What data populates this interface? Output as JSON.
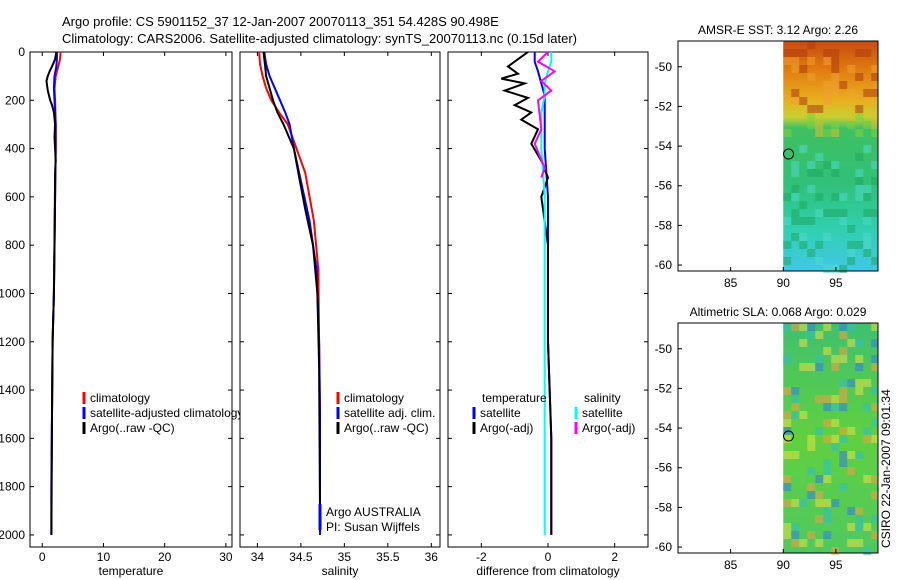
{
  "header": {
    "line1": "Argo profile: CS 5901152_37 12-Jan-2007 20070113_351 54.428S 90.498E",
    "line2": "Climatology: CARS2006. Satellite-adjusted climatology: synTS_20070113.nc (0.15d later)"
  },
  "side_credit": "CSIRO 22-Jan-2007 09:01:34",
  "colors": {
    "red": "#ff0000",
    "blue": "#0000ff",
    "black": "#000000",
    "cyan": "#00ffff",
    "magenta": "#ff00ff"
  },
  "chart_data": [
    {
      "type": "line",
      "xlabel": "temperature",
      "xlim": [
        -2,
        31
      ],
      "ylim": [
        0,
        2050
      ],
      "xticks": [
        0,
        10,
        20,
        30
      ],
      "yticks": [
        0,
        200,
        400,
        600,
        800,
        1000,
        1200,
        1400,
        1600,
        1800,
        2000
      ],
      "y_reversed": true,
      "legend": {
        "position": "middle-right",
        "entries": [
          "climatology",
          "satellite-adjusted climatology",
          "Argo(..raw -QC)"
        ]
      },
      "series": [
        {
          "name": "climatology",
          "color": "red",
          "x": [
            3.0,
            2.9,
            2.6,
            2.2,
            2.0,
            2.1,
            2.2,
            2.2,
            2.1,
            2.0,
            1.9,
            1.7,
            1.6,
            1.5,
            1.5
          ],
          "y": [
            0,
            30,
            60,
            100,
            150,
            200,
            300,
            400,
            600,
            800,
            1000,
            1200,
            1500,
            1800,
            2000
          ]
        },
        {
          "name": "satellite-adjusted climatology",
          "color": "blue",
          "x": [
            2.4,
            2.4,
            2.3,
            2.0,
            1.9,
            2.0,
            2.2,
            2.2,
            2.1,
            2.0,
            1.9,
            1.7,
            1.6,
            1.5,
            1.5
          ],
          "y": [
            0,
            30,
            60,
            100,
            150,
            200,
            300,
            400,
            600,
            800,
            1000,
            1200,
            1500,
            1800,
            2000
          ]
        },
        {
          "name": "Argo(..raw -QC)",
          "color": "black",
          "x": [
            2.3,
            2.1,
            1.6,
            1.2,
            0.9,
            0.7,
            0.8,
            0.9,
            1.1,
            1.3,
            1.6,
            1.9,
            2.1,
            2.0,
            2.1,
            2.2,
            2.1,
            2.0,
            1.9,
            1.7,
            1.6,
            1.5
          ],
          "y": [
            0,
            30,
            60,
            80,
            100,
            120,
            140,
            160,
            180,
            200,
            220,
            250,
            300,
            350,
            400,
            450,
            500,
            800,
            1000,
            1200,
            1500,
            2000
          ]
        }
      ]
    },
    {
      "type": "line",
      "xlabel": "salinity",
      "xlim": [
        33.8,
        36.1
      ],
      "ylim": [
        0,
        2050
      ],
      "xticks": [
        34,
        34.5,
        35,
        35.5,
        36
      ],
      "y_reversed": true,
      "legend": {
        "position": "middle-right",
        "entries": [
          "climatology",
          "satellite adj. clim.",
          "Argo(..raw -QC)"
        ]
      },
      "note": [
        "Argo AUSTRALIA",
        "PI: Susan Wijffels"
      ],
      "series": [
        {
          "name": "climatology",
          "color": "red",
          "x": [
            34.02,
            34.03,
            34.06,
            34.1,
            34.16,
            34.25,
            34.35,
            34.45,
            34.55,
            34.65,
            34.7,
            34.71,
            34.72,
            34.72,
            34.72
          ],
          "y": [
            0,
            50,
            100,
            150,
            200,
            250,
            300,
            400,
            500,
            700,
            900,
            1200,
            1500,
            1800,
            2000
          ]
        },
        {
          "name": "satellite adj. clim.",
          "color": "blue",
          "x": [
            34.08,
            34.1,
            34.14,
            34.2,
            34.26,
            34.32,
            34.37,
            34.42,
            34.48,
            34.6,
            34.68,
            34.71,
            34.72,
            34.72,
            34.72
          ],
          "y": [
            0,
            50,
            100,
            150,
            200,
            250,
            300,
            400,
            500,
            700,
            900,
            1200,
            1500,
            1800,
            2000
          ]
        },
        {
          "name": "Argo(..raw -QC)",
          "color": "black",
          "x": [
            34.07,
            34.09,
            34.1,
            34.14,
            34.18,
            34.23,
            34.3,
            34.36,
            34.42,
            34.47,
            34.55,
            34.64,
            34.69,
            34.71,
            34.72
          ],
          "y": [
            0,
            60,
            100,
            150,
            200,
            250,
            300,
            350,
            400,
            500,
            650,
            800,
            1000,
            1300,
            1900
          ]
        }
      ]
    },
    {
      "type": "line",
      "xlabel": "difference from climatology",
      "xlim": [
        -3,
        3
      ],
      "ylim": [
        0,
        2050
      ],
      "xticks": [
        -2,
        0,
        2
      ],
      "y_reversed": true,
      "legend": {
        "position": "lower-middle",
        "groups": [
          {
            "title": "temperature",
            "entries": [
              "satellite",
              "Argo(-adj)"
            ]
          },
          {
            "title": "salinity",
            "entries": [
              "satellite",
              "Argo(-adj)"
            ]
          }
        ]
      },
      "series": [
        {
          "name": "temperature satellite",
          "color": "blue",
          "x": [
            -0.4,
            -0.4,
            -0.3,
            -0.2,
            -0.1,
            -0.1,
            -0.1,
            0.0,
            0.0,
            0.0,
            0.1,
            0.1
          ],
          "y": [
            0,
            40,
            80,
            130,
            180,
            250,
            400,
            600,
            900,
            1200,
            1600,
            2000
          ]
        },
        {
          "name": "temperature Argo(-adj)",
          "color": "black",
          "x": [
            -0.6,
            -0.9,
            -1.2,
            -0.9,
            -1.4,
            -0.7,
            -1.3,
            -0.6,
            -1.0,
            -0.5,
            -0.8,
            -0.3,
            -0.5,
            -0.2,
            0.0,
            -0.2,
            0.0,
            0.0,
            0.1,
            0.1
          ],
          "y": [
            0,
            30,
            60,
            90,
            110,
            130,
            160,
            190,
            220,
            250,
            280,
            320,
            380,
            450,
            520,
            600,
            800,
            1200,
            1600,
            2000
          ]
        },
        {
          "name": "salinity satellite",
          "color": "cyan",
          "x": [
            0.1,
            0.1,
            0.0,
            -0.1,
            -0.1,
            -0.2,
            -0.2,
            -0.1,
            -0.1,
            -0.1,
            -0.1,
            -0.1
          ],
          "y": [
            0,
            40,
            80,
            130,
            180,
            250,
            400,
            600,
            900,
            1200,
            1600,
            2000
          ]
        },
        {
          "name": "salinity Argo(-adj)",
          "color": "magenta",
          "x": [
            0.0,
            -0.3,
            0.2,
            -0.2,
            0.1,
            -0.3,
            -0.2,
            -0.4,
            -0.1,
            -0.2
          ],
          "y": [
            0,
            40,
            80,
            120,
            160,
            200,
            320,
            380,
            480,
            520
          ]
        }
      ]
    },
    {
      "type": "heatmap",
      "title": "AMSR-E SST: 3.12 Argo: 2.26",
      "xlim": [
        80,
        99
      ],
      "ylim": [
        -60.3,
        -48.7
      ],
      "xticks": [
        85,
        90,
        95
      ],
      "yticks": [
        -50,
        -52,
        -54,
        -56,
        -58,
        -60
      ],
      "data_extent_lon": [
        90,
        99
      ],
      "marker": {
        "lon": 90.5,
        "lat": -54.4
      }
    },
    {
      "type": "heatmap",
      "title": "Altimetric SLA: 0.068 Argo: 0.029",
      "xlim": [
        80,
        99
      ],
      "ylim": [
        -60.3,
        -48.7
      ],
      "xticks": [
        85,
        90,
        95
      ],
      "yticks": [
        -50,
        -52,
        -54,
        -56,
        -58,
        -60
      ],
      "data_extent_lon": [
        90,
        99
      ],
      "marker": {
        "lon": 90.5,
        "lat": -54.4
      }
    }
  ]
}
